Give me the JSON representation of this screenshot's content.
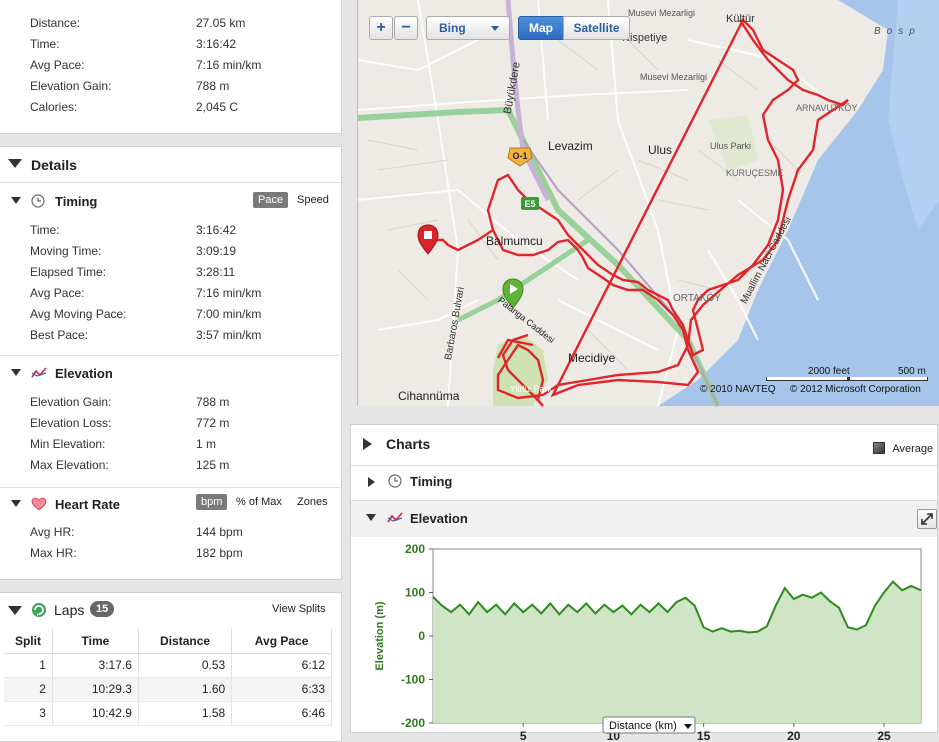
{
  "summary": [
    {
      "label": "Distance:",
      "value": "27.05 km"
    },
    {
      "label": "Time:",
      "value": "3:16:42"
    },
    {
      "label": "Avg Pace:",
      "value": "7:16 min/km"
    },
    {
      "label": "Elevation Gain:",
      "value": "788 m"
    },
    {
      "label": "Calories:",
      "value": "2,045 C"
    }
  ],
  "details": {
    "title": "Details",
    "timing": {
      "title": "Timing",
      "toggle": [
        "Pace",
        "Speed"
      ],
      "rows": [
        {
          "label": "Time:",
          "value": "3:16:42"
        },
        {
          "label": "Moving Time:",
          "value": "3:09:19"
        },
        {
          "label": "Elapsed Time:",
          "value": "3:28:11"
        },
        {
          "label": "Avg Pace:",
          "value": "7:16 min/km"
        },
        {
          "label": "Avg Moving Pace:",
          "value": "7:00 min/km"
        },
        {
          "label": "Best Pace:",
          "value": "3:57 min/km"
        }
      ]
    },
    "elevation": {
      "title": "Elevation",
      "rows": [
        {
          "label": "Elevation Gain:",
          "value": "788 m"
        },
        {
          "label": "Elevation Loss:",
          "value": "772 m"
        },
        {
          "label": "Min Elevation:",
          "value": "1 m"
        },
        {
          "label": "Max Elevation:",
          "value": "125 m"
        }
      ]
    },
    "heart_rate": {
      "title": "Heart Rate",
      "toggle": [
        "bpm",
        "% of Max",
        "Zones"
      ],
      "rows": [
        {
          "label": "Avg HR:",
          "value": "144 bpm"
        },
        {
          "label": "Max HR:",
          "value": "182 bpm"
        }
      ]
    }
  },
  "laps": {
    "title": "Laps",
    "count": "15",
    "view_splits": "View Splits",
    "columns": [
      "Split",
      "Time",
      "Distance",
      "Avg Pace"
    ],
    "rows": [
      [
        "1",
        "3:17.6",
        "0.53",
        "6:12"
      ],
      [
        "2",
        "10:29.3",
        "1.60",
        "6:33"
      ],
      [
        "3",
        "10:42.9",
        "1.58",
        "6:46"
      ]
    ]
  },
  "map": {
    "zoom_in": "+",
    "zoom_out": "−",
    "provider": "Bing",
    "modes": [
      "Map",
      "Satellite"
    ],
    "scale": [
      "2000 feet",
      "500 m"
    ],
    "copyright": [
      "© 2010 NAVTEQ",
      "© 2012 Microsoft Corporation"
    ],
    "labels": [
      "Kültür",
      "Musevi Mezarligi",
      "Nispetiye",
      "Musevi Mezarligi",
      "Büyükdere",
      "ARNAVUTKÖY",
      "Levazim",
      "Ulus",
      "Ulus Parki",
      "KURUÇESME",
      "Balmumcu",
      "Muallim Naci Caddesi",
      "ORTAKÖY",
      "Barbaros Bulvari",
      "Palanga Caddesi",
      "Mecidiye",
      "Yildiz Park",
      "Cihannüma",
      "Bosp",
      "O-1",
      "E5"
    ]
  },
  "charts": {
    "title": "Charts",
    "average_label": "Average",
    "sections": [
      "Timing",
      "Elevation"
    ]
  },
  "chart_data": {
    "type": "area",
    "xlabel": "Distance (km)",
    "ylabel": "Elevation (m)",
    "xlim": [
      0,
      27.05
    ],
    "ylim": [
      -200,
      200
    ],
    "xticks": [
      5,
      10,
      15,
      20,
      25
    ],
    "yticks": [
      200,
      100,
      0,
      -100,
      -200
    ],
    "colors": {
      "line": "#2e8b1e",
      "fill": "#cfe5c6"
    },
    "x": [
      0,
      0.5,
      1,
      1.5,
      2,
      2.5,
      3,
      3.5,
      4,
      4.5,
      5,
      5.5,
      6,
      6.5,
      7,
      7.5,
      8,
      8.5,
      9,
      9.5,
      10,
      10.5,
      11,
      11.5,
      12,
      12.5,
      13,
      13.5,
      14,
      14.5,
      15,
      15.5,
      16,
      16.5,
      17,
      17.5,
      18,
      18.5,
      19,
      19.5,
      20,
      20.5,
      21,
      21.5,
      22,
      22.5,
      23,
      23.5,
      24,
      24.5,
      25,
      25.5,
      26,
      26.5,
      27.05
    ],
    "y": [
      90,
      70,
      55,
      72,
      50,
      78,
      55,
      72,
      50,
      75,
      55,
      72,
      52,
      75,
      50,
      72,
      55,
      75,
      52,
      72,
      55,
      70,
      50,
      72,
      55,
      75,
      55,
      78,
      88,
      70,
      20,
      10,
      18,
      10,
      12,
      8,
      10,
      22,
      70,
      110,
      85,
      95,
      88,
      100,
      80,
      65,
      20,
      15,
      25,
      70,
      100,
      125,
      105,
      115,
      105
    ]
  }
}
